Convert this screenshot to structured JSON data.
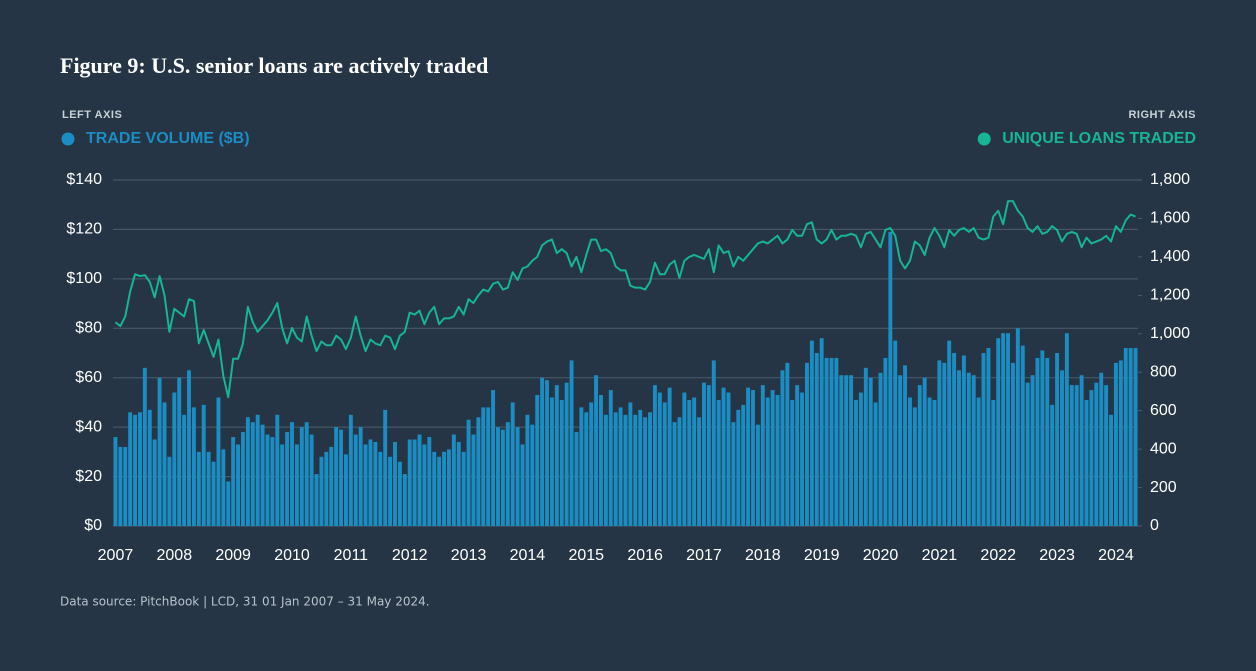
{
  "chart_data": {
    "type": "bar-line",
    "title": "Figure 9: U.S. senior loans are actively traded",
    "left_axis_label": "LEFT AXIS",
    "right_axis_label": "RIGHT AXIS",
    "source": "Data source: PitchBook | LCD, 31 01 Jan 2007 – 31 May 2024.",
    "legend": "top",
    "grid": true,
    "categories": [
      "2007",
      null,
      null,
      null,
      null,
      null,
      null,
      null,
      null,
      null,
      null,
      null,
      "2008",
      null,
      null,
      null,
      null,
      null,
      null,
      null,
      null,
      null,
      null,
      null,
      "2009",
      null,
      null,
      null,
      null,
      null,
      null,
      null,
      null,
      null,
      null,
      null,
      "2010",
      null,
      null,
      null,
      null,
      null,
      null,
      null,
      null,
      null,
      null,
      null,
      "2011",
      null,
      null,
      null,
      null,
      null,
      null,
      null,
      null,
      null,
      null,
      null,
      "2012",
      null,
      null,
      null,
      null,
      null,
      null,
      null,
      null,
      null,
      null,
      null,
      "2013",
      null,
      null,
      null,
      null,
      null,
      null,
      null,
      null,
      null,
      null,
      null,
      "2014",
      null,
      null,
      null,
      null,
      null,
      null,
      null,
      null,
      null,
      null,
      null,
      "2015",
      null,
      null,
      null,
      null,
      null,
      null,
      null,
      null,
      null,
      null,
      null,
      "2016",
      null,
      null,
      null,
      null,
      null,
      null,
      null,
      null,
      null,
      null,
      null,
      "2017",
      null,
      null,
      null,
      null,
      null,
      null,
      null,
      null,
      null,
      null,
      null,
      "2018",
      null,
      null,
      null,
      null,
      null,
      null,
      null,
      null,
      null,
      null,
      null,
      "2019",
      null,
      null,
      null,
      null,
      null,
      null,
      null,
      null,
      null,
      null,
      null,
      "2020",
      null,
      null,
      null,
      null,
      null,
      null,
      null,
      null,
      null,
      null,
      null,
      "2021",
      null,
      null,
      null,
      null,
      null,
      null,
      null,
      null,
      null,
      null,
      null,
      "2022",
      null,
      null,
      null,
      null,
      null,
      null,
      null,
      null,
      null,
      null,
      null,
      "2023",
      null,
      null,
      null,
      null,
      null,
      null,
      null,
      null,
      null,
      null,
      null,
      "2024",
      null,
      null,
      null,
      null
    ],
    "series": [
      {
        "name": "TRADE VOLUME ($B)",
        "type": "bar",
        "color": "#1b8dc2",
        "values": [
          36,
          32,
          32,
          46,
          45,
          46,
          64,
          47,
          35,
          60,
          50,
          28,
          54,
          60,
          45,
          63,
          48,
          30,
          49,
          30,
          26,
          52,
          31,
          18,
          36,
          33,
          38,
          44,
          42,
          45,
          41,
          37,
          36,
          45,
          33,
          38,
          42,
          33,
          40,
          42,
          37,
          21,
          28,
          30,
          32,
          40,
          39,
          29,
          45,
          37,
          40,
          33,
          35,
          34,
          30,
          47,
          28,
          34,
          26,
          21,
          35,
          35,
          37,
          33,
          36,
          30,
          28,
          30,
          31,
          37,
          34,
          30,
          43,
          37,
          44,
          48,
          48,
          55,
          40,
          39,
          42,
          50,
          40,
          33,
          45,
          41,
          53,
          60,
          59,
          52,
          57,
          51,
          58,
          67,
          38,
          48,
          46,
          50,
          61,
          53,
          45,
          55,
          46,
          48,
          45,
          50,
          45,
          47,
          44,
          46,
          57,
          54,
          50,
          56,
          42,
          44,
          54,
          51,
          52,
          44,
          58,
          57,
          67,
          51,
          56,
          54,
          42,
          47,
          49,
          56,
          55,
          41,
          57,
          52,
          55,
          53,
          63,
          66,
          51,
          57,
          54,
          66,
          75,
          70,
          76,
          68,
          68,
          68,
          61,
          61,
          61,
          51,
          54,
          64,
          60,
          50,
          62,
          68,
          119,
          75,
          61,
          65,
          52,
          48,
          57,
          60,
          52,
          51,
          67,
          66,
          75,
          70,
          63,
          69,
          62,
          61,
          52,
          70,
          72,
          51,
          76,
          78,
          78,
          66,
          80,
          73,
          58,
          61,
          68,
          71,
          68,
          49,
          70,
          63,
          78,
          57,
          57,
          61,
          51,
          55,
          58,
          62,
          57,
          45,
          66,
          67,
          72,
          72,
          72
        ]
      },
      {
        "name": "UNIQUE LOANS TRADED",
        "type": "line",
        "axis": "y2",
        "color": "#17b495",
        "values": [
          1060,
          1040,
          1090,
          1220,
          1310,
          1300,
          1305,
          1270,
          1190,
          1300,
          1200,
          1010,
          1130,
          1110,
          1090,
          1180,
          1170,
          950,
          1020,
          950,
          880,
          970,
          780,
          670,
          870,
          870,
          950,
          1140,
          1060,
          1010,
          1040,
          1070,
          1110,
          1160,
          1030,
          950,
          1030,
          980,
          960,
          1090,
          990,
          910,
          960,
          940,
          940,
          990,
          970,
          920,
          980,
          1090,
          990,
          910,
          970,
          950,
          940,
          990,
          980,
          920,
          990,
          1010,
          1110,
          1100,
          1120,
          1050,
          1110,
          1140,
          1050,
          1080,
          1080,
          1090,
          1140,
          1100,
          1180,
          1160,
          1200,
          1230,
          1220,
          1260,
          1270,
          1230,
          1240,
          1320,
          1280,
          1340,
          1350,
          1380,
          1400,
          1460,
          1480,
          1490,
          1420,
          1440,
          1420,
          1350,
          1400,
          1320,
          1410,
          1490,
          1490,
          1430,
          1440,
          1420,
          1350,
          1330,
          1330,
          1250,
          1240,
          1240,
          1230,
          1270,
          1370,
          1310,
          1310,
          1360,
          1380,
          1290,
          1380,
          1400,
          1410,
          1400,
          1390,
          1440,
          1320,
          1460,
          1420,
          1430,
          1350,
          1400,
          1380,
          1410,
          1440,
          1470,
          1480,
          1470,
          1490,
          1510,
          1470,
          1490,
          1540,
          1510,
          1510,
          1570,
          1580,
          1490,
          1470,
          1490,
          1540,
          1490,
          1510,
          1510,
          1520,
          1510,
          1450,
          1520,
          1530,
          1490,
          1450,
          1540,
          1550,
          1510,
          1380,
          1340,
          1380,
          1480,
          1460,
          1410,
          1500,
          1550,
          1510,
          1450,
          1540,
          1510,
          1540,
          1550,
          1530,
          1550,
          1500,
          1490,
          1500,
          1610,
          1640,
          1570,
          1690,
          1690,
          1640,
          1610,
          1550,
          1530,
          1560,
          1520,
          1530,
          1560,
          1540,
          1480,
          1520,
          1530,
          1520,
          1450,
          1500,
          1470,
          1480,
          1490,
          1510,
          1480,
          1560,
          1530,
          1590,
          1620,
          1610
        ]
      }
    ],
    "ylim": [
      0,
      140
    ],
    "yticks": [
      {
        "value": 0,
        "label": "$0"
      },
      {
        "value": 20,
        "label": "$20"
      },
      {
        "value": 40,
        "label": "$40"
      },
      {
        "value": 60,
        "label": "$60"
      },
      {
        "value": 80,
        "label": "$80"
      },
      {
        "value": 100,
        "label": "$100"
      },
      {
        "value": 120,
        "label": "$120"
      },
      {
        "value": 140,
        "label": "$140"
      }
    ],
    "y2lim": [
      0,
      1800
    ],
    "y2ticks": [
      0,
      200,
      400,
      600,
      800,
      {
        "value": 1000,
        "label": "1,000"
      },
      {
        "value": 1200,
        "label": "1,200"
      },
      {
        "value": 1400,
        "label": "1,400"
      },
      {
        "value": 1600,
        "label": "1,600"
      },
      {
        "value": 1800,
        "label": "1,800"
      }
    ]
  }
}
